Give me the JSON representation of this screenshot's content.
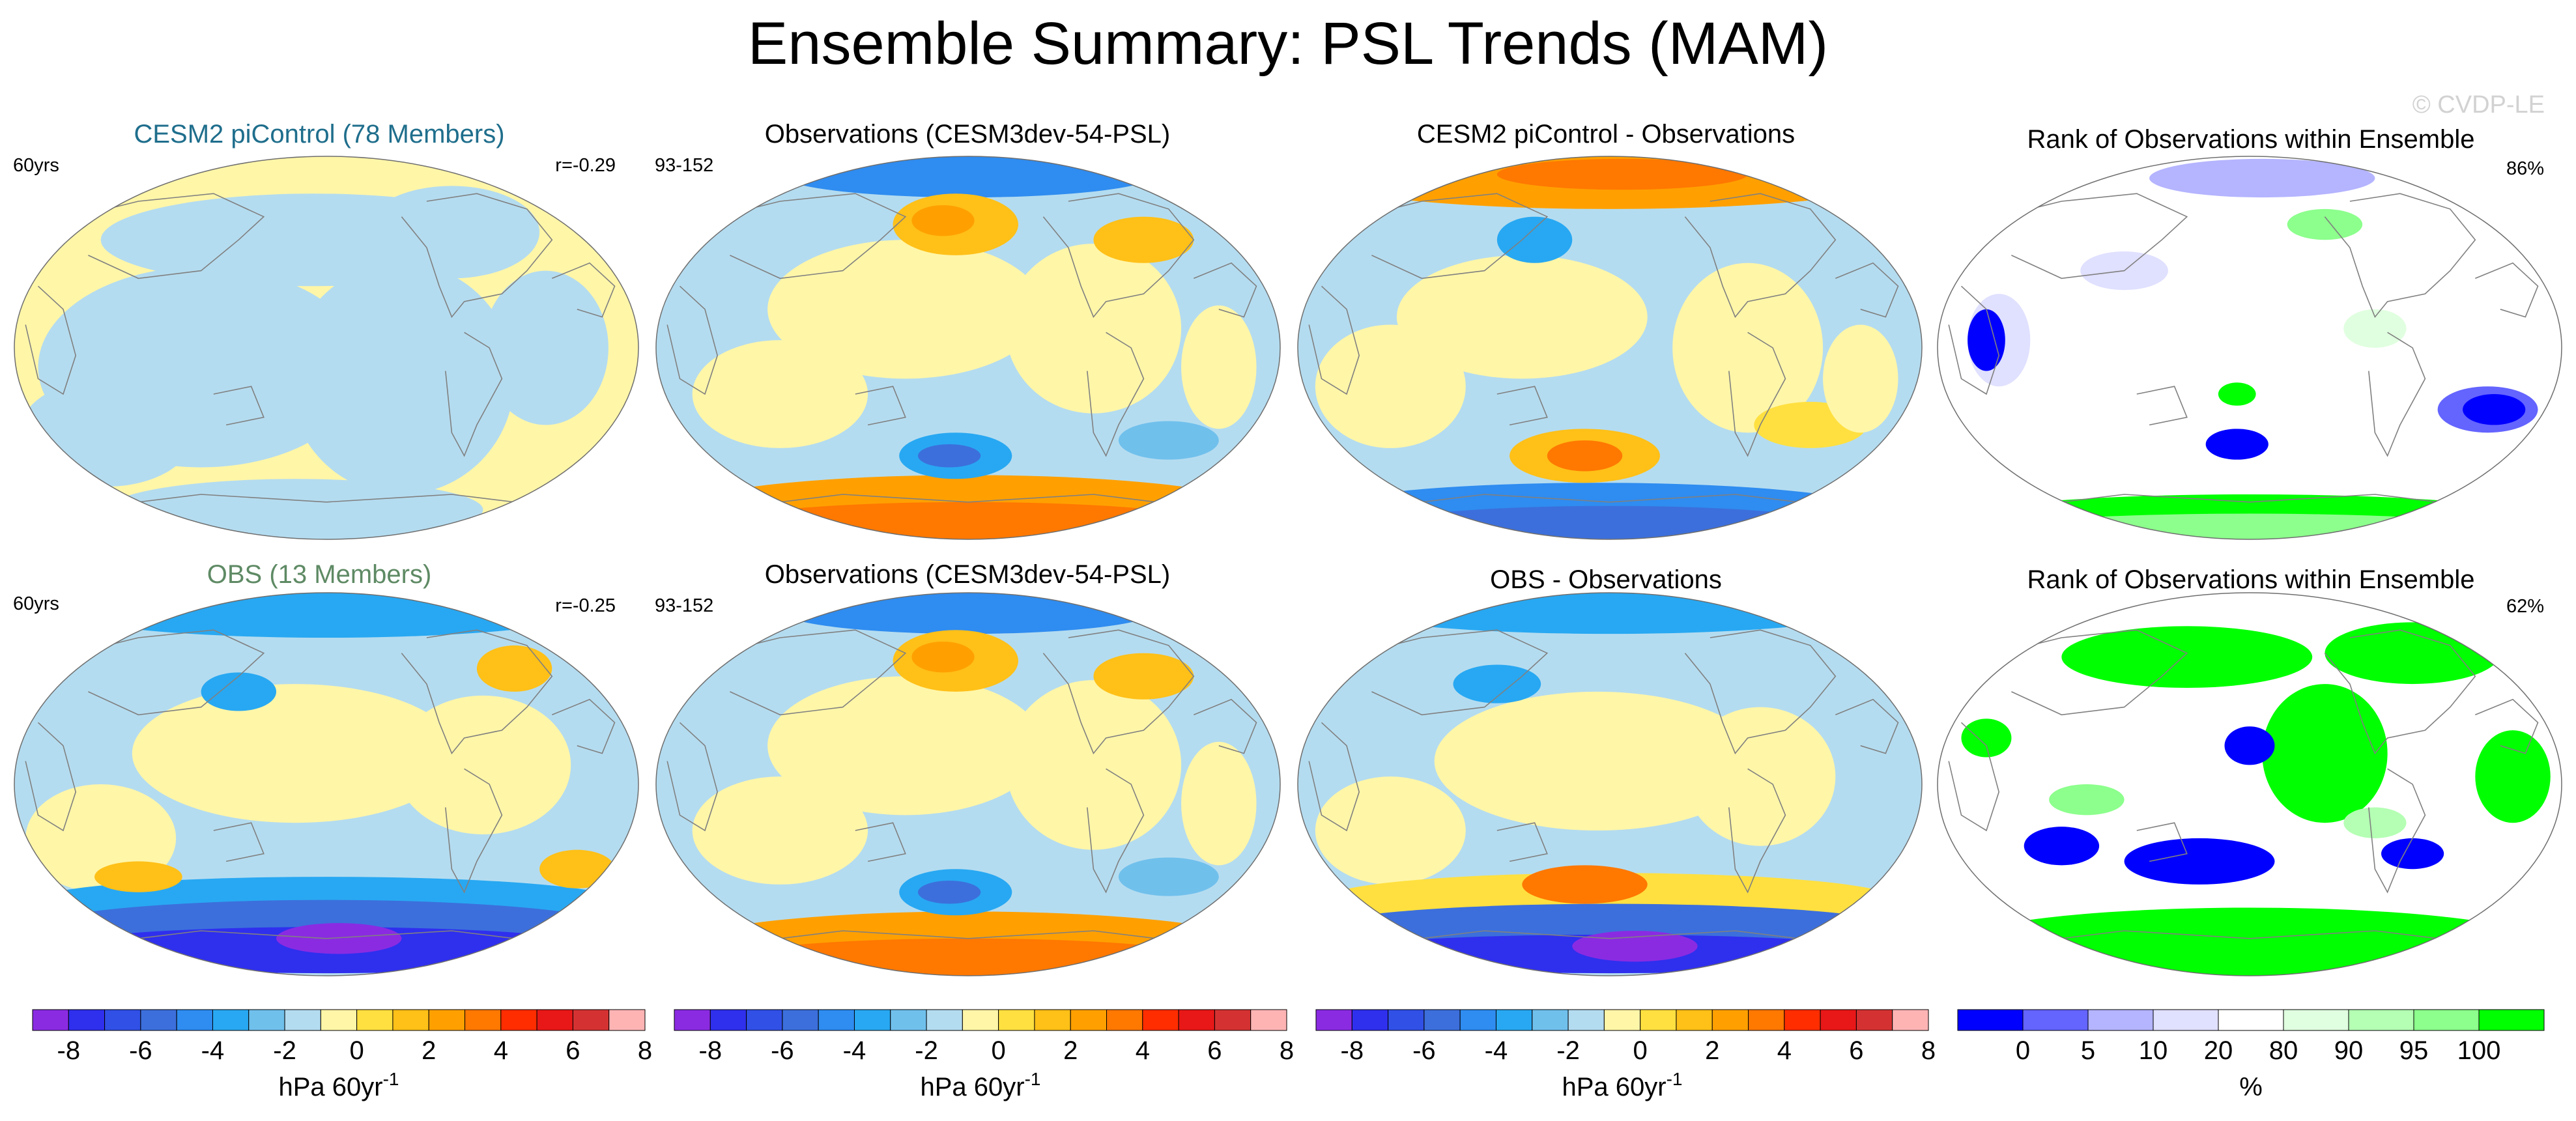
{
  "figure": {
    "title": "Ensemble Summary: PSL Trends (MAM)",
    "watermark": "© CVDP-LE",
    "colors": {
      "trend": [
        "#8a2be2",
        "#2f2fee",
        "#3050e6",
        "#3c6fdc",
        "#2f8cf0",
        "#28a8f2",
        "#70c0ec",
        "#b4dcf0",
        "#fff6a8",
        "#ffe040",
        "#ffc018",
        "#ffa000",
        "#ff7800",
        "#ff2d00",
        "#e81818",
        "#d43232",
        "#ffb4b4"
      ],
      "rank": [
        "#0000ff",
        "#6464ff",
        "#b4b4ff",
        "#e0e0ff",
        "#ffffff",
        "#e0ffe0",
        "#b4ffb4",
        "#8cff8c",
        "#00ff00"
      ],
      "map_ocean_light": "#b4dcf0",
      "map_yellow": "#fff6a8",
      "coastline": "#808080"
    }
  },
  "chart_data": [
    {
      "type": "heatmap",
      "id": "p11",
      "title": "CESM2 piControl (78 Members)",
      "title_color": "#1f6e8c",
      "left_label": "60yrs",
      "right_label": "r=-0.29",
      "scheme": "trend",
      "pattern": "model"
    },
    {
      "type": "heatmap",
      "id": "p12",
      "title": "Observations (CESM3dev-54-PSL)",
      "title_color": "#000000",
      "left_label": "93-152",
      "right_label": "",
      "scheme": "trend",
      "pattern": "obs"
    },
    {
      "type": "heatmap",
      "id": "p13",
      "title": "CESM2 piControl - Observations",
      "title_color": "#000000",
      "left_label": "",
      "right_label": "",
      "scheme": "trend",
      "pattern": "diff1"
    },
    {
      "type": "heatmap",
      "id": "p14",
      "title": "Rank of Observations within Ensemble",
      "title_color": "#000000",
      "left_label": "",
      "right_label": "86%",
      "scheme": "rank",
      "pattern": "rank1"
    },
    {
      "type": "heatmap",
      "id": "p21",
      "title": "OBS (13 Members)",
      "title_color": "#5e8a64",
      "left_label": "60yrs",
      "right_label": "r=-0.25",
      "scheme": "trend",
      "pattern": "obsens"
    },
    {
      "type": "heatmap",
      "id": "p22",
      "title": "Observations (CESM3dev-54-PSL)",
      "title_color": "#000000",
      "left_label": "93-152",
      "right_label": "",
      "scheme": "trend",
      "pattern": "obs"
    },
    {
      "type": "heatmap",
      "id": "p23",
      "title": "OBS - Observations",
      "title_color": "#000000",
      "left_label": "",
      "right_label": "",
      "scheme": "trend",
      "pattern": "diff2"
    },
    {
      "type": "heatmap",
      "id": "p24",
      "title": "Rank of Observations within Ensemble",
      "title_color": "#000000",
      "left_label": "",
      "right_label": "62%",
      "scheme": "rank",
      "pattern": "rank2"
    }
  ],
  "colorbars": [
    {
      "id": "cb1",
      "scheme": "trend",
      "ticks": [
        "-8",
        "-6",
        "-4",
        "-2",
        "0",
        "2",
        "4",
        "6",
        "8"
      ],
      "unit_base": "hPa 60yr",
      "unit_sup": "-1"
    },
    {
      "id": "cb2",
      "scheme": "trend",
      "ticks": [
        "-8",
        "-6",
        "-4",
        "-2",
        "0",
        "2",
        "4",
        "6",
        "8"
      ],
      "unit_base": "hPa 60yr",
      "unit_sup": "-1"
    },
    {
      "id": "cb3",
      "scheme": "trend",
      "ticks": [
        "-8",
        "-6",
        "-4",
        "-2",
        "0",
        "2",
        "4",
        "6",
        "8"
      ],
      "unit_base": "hPa 60yr",
      "unit_sup": "-1"
    },
    {
      "id": "cb4",
      "scheme": "rank",
      "ticks": [
        "0",
        "5",
        "10",
        "20",
        "80",
        "90",
        "95",
        "100"
      ],
      "unit_base": "%",
      "unit_sup": ""
    }
  ]
}
